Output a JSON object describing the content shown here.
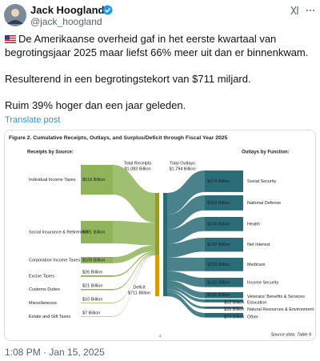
{
  "author": {
    "name": "Jack Hoogland",
    "handle": "@jack_hoogland"
  },
  "post": {
    "paragraphs": [
      "De Amerikaanse overheid gaf in het eerste kwartaal van begrotingsjaar 2025 maar liefst 66% meer uit dan er binnenkwam.",
      "Resulterend in een begrotingstekort van $711 miljard.",
      "Ruim 39% hoger dan een jaar geleden."
    ],
    "translate": "Translate post",
    "timestamp": "1:08 PM · Jan 15, 2025"
  },
  "figure": {
    "title": "Figure 2. Cumulative Receipts, Outlays, and Surplus/Deficit through Fiscal Year 2025",
    "receipts_heading": "Receipts by Source:",
    "outlays_heading": "Outlays by Function:",
    "total_receipts": {
      "label": "Total Receipts",
      "value": 1083,
      "value_label": "$1,083 Billion"
    },
    "total_outlays": {
      "label": "Total Outlays",
      "value": 1794,
      "value_label": "$1,794 Billion"
    },
    "deficit": {
      "label": "Deficit",
      "value": 711,
      "value_label": "$711 Billion"
    },
    "receipts": {
      "categories": [
        "Individual Income Taxes",
        "Social Insurance & Retirement",
        "Corporation Income Taxes",
        "Excise Taxes",
        "Customs Duties",
        "Miscellaneous",
        "Estate and Gift Taxes"
      ],
      "values": [
        518,
        391,
        109,
        26,
        21,
        10,
        7
      ],
      "value_labels": [
        "$518 Billion",
        "$391 Billion",
        "$109 Billion",
        "$26 Billion",
        "$21 Billion",
        "$10 Billion",
        "$7 Billion"
      ],
      "color": "#8fb45a"
    },
    "outlays": {
      "categories": [
        "Social Security",
        "National Defense",
        "Health",
        "Net Interest",
        "Medicare",
        "Income Security",
        "Veterans' Benefits & Services",
        "Education",
        "Natural Resources & Environment",
        "Other"
      ],
      "values": [
        374,
        262,
        246,
        242,
        233,
        162,
        105,
        52,
        39,
        79
      ],
      "value_labels": [
        "$374 Billion",
        "$262 Billion",
        "$246 Billion",
        "$242 Billion",
        "$233 Billion",
        "$162 Billion",
        "$105 Billion",
        "$52 Billion",
        "$39 Billion",
        "$79 Billion"
      ],
      "color": "#2a6c78"
    },
    "source": "Source data: Table 9",
    "page": "4"
  }
}
